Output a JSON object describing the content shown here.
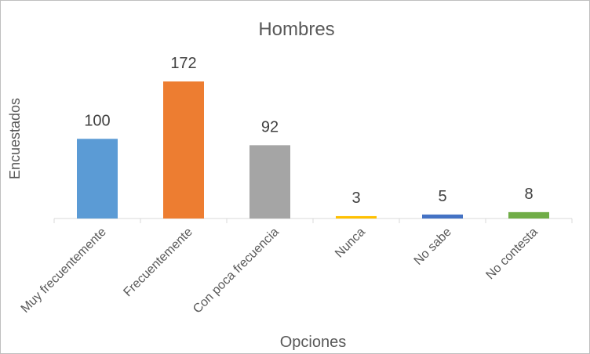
{
  "chart_data": {
    "type": "bar",
    "title": "Hombres",
    "xlabel": "Opciones",
    "ylabel": "Encuestados",
    "categories": [
      "Muy frecuentemente",
      "Frecuentemente",
      "Con poca frecuencia",
      "Nunca",
      "No sabe",
      "No contesta"
    ],
    "values": [
      100,
      172,
      92,
      3,
      5,
      8
    ],
    "colors": [
      "#5b9bd5",
      "#ed7d31",
      "#a5a5a5",
      "#ffc000",
      "#4472c4",
      "#70ad47"
    ],
    "ylim": [
      0,
      172
    ],
    "grid": false,
    "legend": "none",
    "data_labels": true
  }
}
